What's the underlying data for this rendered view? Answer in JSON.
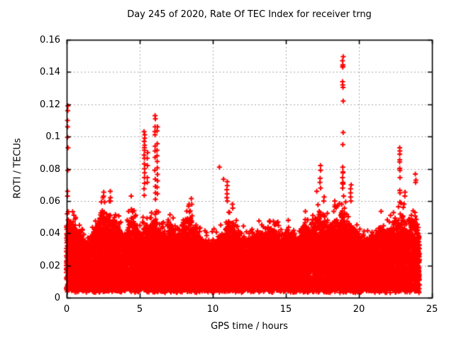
{
  "chart_data": {
    "type": "scatter",
    "title": "Day 245 of 2020, Rate Of TEC Index for receiver trng",
    "xlabel": "GPS time / hours",
    "ylabel": "ROTI / TECUs",
    "xlim": [
      0,
      25
    ],
    "ylim": [
      0,
      0.16
    ],
    "xticks": {
      "values": [
        0,
        5,
        10,
        15,
        20,
        25
      ],
      "labels": [
        "0",
        "5",
        "10",
        "15",
        "20",
        "25"
      ]
    },
    "yticks": {
      "values": [
        0,
        0.02,
        0.04,
        0.06,
        0.08,
        0.1,
        0.12,
        0.14,
        0.16
      ],
      "labels": [
        "0",
        "0.02",
        "0.04",
        "0.06",
        "0.08",
        "0.1",
        "0.12",
        "0.14",
        "0.16"
      ]
    },
    "grid": true,
    "legend": "none",
    "marker": "plus",
    "marker_color": "#ff0000",
    "grid_color": "#a8a8a8",
    "axis_color": "#000000",
    "background": "#ffffff",
    "x_data_range": [
      0,
      24.15
    ],
    "baseline_band": {
      "y_min": 0.003,
      "fringe_top": 0.008,
      "core_bottom": 0.008,
      "core_top_max": 0.034
    },
    "dense_envelope": [
      [
        0.0,
        0.058
      ],
      [
        0.5,
        0.053
      ],
      [
        0.8,
        0.048
      ],
      [
        1.1,
        0.043
      ],
      [
        1.4,
        0.04
      ],
      [
        1.7,
        0.046
      ],
      [
        2.1,
        0.057
      ],
      [
        2.5,
        0.064
      ],
      [
        3.0,
        0.06
      ],
      [
        3.4,
        0.057
      ],
      [
        3.7,
        0.048
      ],
      [
        4.0,
        0.044
      ],
      [
        4.4,
        0.06
      ],
      [
        4.8,
        0.05
      ],
      [
        5.1,
        0.047
      ],
      [
        5.35,
        0.056
      ],
      [
        5.6,
        0.052
      ],
      [
        6.1,
        0.058
      ],
      [
        6.5,
        0.05
      ],
      [
        6.8,
        0.044
      ],
      [
        7.1,
        0.055
      ],
      [
        7.5,
        0.046
      ],
      [
        7.9,
        0.048
      ],
      [
        8.2,
        0.058
      ],
      [
        8.5,
        0.058
      ],
      [
        9.0,
        0.046
      ],
      [
        9.4,
        0.042
      ],
      [
        9.8,
        0.04
      ],
      [
        10.2,
        0.044
      ],
      [
        10.6,
        0.046
      ],
      [
        11.0,
        0.052
      ],
      [
        11.3,
        0.056
      ],
      [
        11.7,
        0.05
      ],
      [
        12.0,
        0.046
      ],
      [
        12.4,
        0.042
      ],
      [
        12.8,
        0.045
      ],
      [
        13.2,
        0.048
      ],
      [
        13.6,
        0.047
      ],
      [
        14.0,
        0.049
      ],
      [
        14.4,
        0.049
      ],
      [
        14.8,
        0.045
      ],
      [
        15.1,
        0.05
      ],
      [
        15.5,
        0.046
      ],
      [
        15.9,
        0.043
      ],
      [
        16.3,
        0.054
      ],
      [
        16.7,
        0.05
      ],
      [
        17.0,
        0.058
      ],
      [
        17.4,
        0.06
      ],
      [
        17.8,
        0.052
      ],
      [
        18.2,
        0.056
      ],
      [
        18.6,
        0.058
      ],
      [
        18.9,
        0.065
      ],
      [
        19.2,
        0.056
      ],
      [
        19.6,
        0.052
      ],
      [
        19.9,
        0.048
      ],
      [
        20.3,
        0.042
      ],
      [
        20.8,
        0.045
      ],
      [
        21.2,
        0.047
      ],
      [
        21.5,
        0.052
      ],
      [
        21.8,
        0.048
      ],
      [
        22.2,
        0.052
      ],
      [
        22.6,
        0.058
      ],
      [
        22.9,
        0.062
      ],
      [
        23.2,
        0.056
      ],
      [
        23.5,
        0.058
      ],
      [
        23.8,
        0.056
      ],
      [
        24.0,
        0.05
      ],
      [
        24.15,
        0.045
      ]
    ],
    "spikes": [
      {
        "x": 0.07,
        "ys": [
          0.119,
          0.116,
          0.11,
          0.106,
          0.0995,
          0.093,
          0.079,
          0.066,
          0.063
        ]
      },
      {
        "x": 2.55,
        "ys": [
          0.0655,
          0.063
        ]
      },
      {
        "x": 3.0,
        "ys": [
          0.066,
          0.062
        ]
      },
      {
        "x": 4.42,
        "ys": [
          0.063
        ]
      },
      {
        "x": 5.32,
        "ys": [
          0.103,
          0.101,
          0.099,
          0.097,
          0.0945,
          0.093,
          0.0915,
          0.0885,
          0.0865,
          0.083,
          0.08,
          0.0775,
          0.0745,
          0.071,
          0.0675,
          0.0635
        ]
      },
      {
        "x": 5.52,
        "ys": [
          0.09,
          0.0865,
          0.082,
          0.0745,
          0.0715
        ]
      },
      {
        "x": 6.05,
        "ys": [
          0.113,
          0.111,
          0.106,
          0.103,
          0.101,
          0.094,
          0.091,
          0.087,
          0.079,
          0.0735,
          0.069,
          0.065,
          0.061
        ]
      },
      {
        "x": 6.2,
        "ys": [
          0.106,
          0.1035,
          0.0955,
          0.0915,
          0.088,
          0.0845,
          0.0805,
          0.0765,
          0.0725,
          0.0685,
          0.0645
        ]
      },
      {
        "x": 8.55,
        "ys": [
          0.0615,
          0.058
        ]
      },
      {
        "x": 10.45,
        "ys": [
          0.081
        ]
      },
      {
        "x": 10.72,
        "ys": [
          0.0735
        ]
      },
      {
        "x": 10.98,
        "ys": [
          0.072,
          0.0695,
          0.067,
          0.0645,
          0.062,
          0.06
        ]
      },
      {
        "x": 11.35,
        "ys": [
          0.058,
          0.0555
        ]
      },
      {
        "x": 16.35,
        "ys": [
          0.0535
        ]
      },
      {
        "x": 17.1,
        "ys": [
          0.066
        ]
      },
      {
        "x": 17.35,
        "ys": [
          0.082,
          0.079,
          0.074,
          0.0715,
          0.068
        ]
      },
      {
        "x": 17.6,
        "ys": [
          0.0625,
          0.06
        ]
      },
      {
        "x": 18.35,
        "ys": [
          0.06,
          0.0575
        ]
      },
      {
        "x": 18.9,
        "ys": [
          0.1495,
          0.147,
          0.1445,
          0.1435,
          0.143,
          0.134,
          0.132,
          0.1305,
          0.122,
          0.1025,
          0.095,
          0.081,
          0.078,
          0.0775,
          0.0745,
          0.0715,
          0.071,
          0.0705,
          0.068
        ]
      },
      {
        "x": 19.45,
        "ys": [
          0.07,
          0.0675,
          0.065,
          0.0625,
          0.06
        ]
      },
      {
        "x": 21.5,
        "ys": [
          0.0535
        ]
      },
      {
        "x": 22.8,
        "ys": [
          0.093,
          0.091,
          0.089,
          0.0855,
          0.0842,
          0.0802,
          0.079,
          0.0745,
          0.0666,
          0.065
        ]
      },
      {
        "x": 23.15,
        "ys": [
          0.0655,
          0.063
        ]
      },
      {
        "x": 23.88,
        "ys": [
          0.0767,
          0.073,
          0.0715
        ]
      }
    ]
  }
}
